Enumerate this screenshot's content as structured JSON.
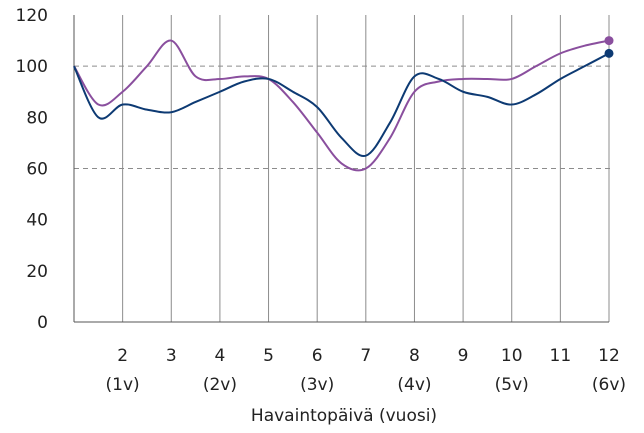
{
  "chart_data": {
    "type": "line",
    "xlabel": "Havaintopäivä (vuosi)",
    "ylabel": "",
    "title": "",
    "xlim": [
      1,
      12
    ],
    "ylim": [
      0,
      120
    ],
    "y_ticks": [
      "0",
      "20",
      "40",
      "60",
      "80",
      "100",
      "120"
    ],
    "x_ticks": [
      {
        "x": 2,
        "label": "2",
        "sub": "(1v)"
      },
      {
        "x": 3,
        "label": "3",
        "sub": ""
      },
      {
        "x": 4,
        "label": "4",
        "sub": "(2v)"
      },
      {
        "x": 5,
        "label": "5",
        "sub": ""
      },
      {
        "x": 6,
        "label": "6",
        "sub": "(3v)"
      },
      {
        "x": 7,
        "label": "7",
        "sub": ""
      },
      {
        "x": 8,
        "label": "8",
        "sub": "(4v)"
      },
      {
        "x": 9,
        "label": "9",
        "sub": ""
      },
      {
        "x": 10,
        "label": "10",
        "sub": "(5v)"
      },
      {
        "x": 11,
        "label": "11",
        "sub": ""
      },
      {
        "x": 12,
        "label": "12",
        "sub": "(6v)"
      }
    ],
    "reference_lines": [
      100,
      60
    ],
    "grid": "vertical",
    "x": [
      1,
      1.5,
      2,
      2.5,
      3,
      3.5,
      4,
      4.5,
      5,
      5.5,
      6,
      6.5,
      7,
      7.5,
      8,
      8.5,
      9,
      9.5,
      10,
      10.5,
      11,
      11.5,
      12
    ],
    "series": [
      {
        "color": "#8a4f9e",
        "values": [
          100,
          85,
          90,
          100,
          110,
          96,
          95,
          96,
          95,
          86,
          74,
          62,
          60,
          72,
          90,
          94,
          95,
          95,
          95,
          100,
          105,
          108,
          110
        ]
      },
      {
        "color": "#0d3a73",
        "values": [
          100,
          80,
          85,
          83,
          82,
          86,
          90,
          94,
          95,
          90,
          84,
          72,
          65,
          78,
          96,
          95,
          90,
          88,
          85,
          89,
          95,
          100,
          105
        ]
      }
    ]
  }
}
